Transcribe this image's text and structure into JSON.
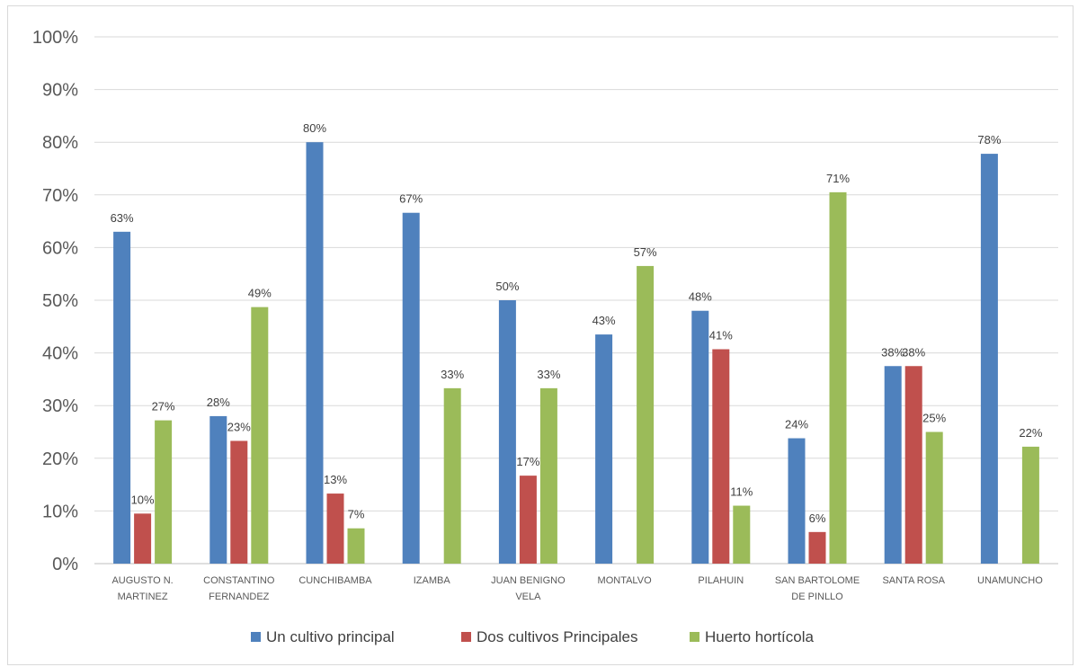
{
  "chart_data": {
    "type": "bar",
    "categories": [
      [
        "AUGUSTO N.",
        "MARTINEZ"
      ],
      [
        "CONSTANTINO",
        "FERNANDEZ"
      ],
      [
        "CUNCHIBAMBA"
      ],
      [
        "IZAMBA"
      ],
      [
        "JUAN BENIGNO",
        "VELA"
      ],
      [
        "MONTALVO"
      ],
      [
        "PILAHUIN"
      ],
      [
        "SAN BARTOLOME",
        "DE PINLLO"
      ],
      [
        "SANTA ROSA"
      ],
      [
        "UNAMUNCHO"
      ]
    ],
    "series": [
      {
        "name": "Un cultivo principal",
        "color": "#4f81bd",
        "values": [
          0.63,
          0.28,
          0.8,
          0.666,
          0.5,
          0.435,
          0.48,
          0.238,
          0.375,
          0.778
        ],
        "labels": [
          "63%",
          "28%",
          "80%",
          "67%",
          "50%",
          "43%",
          "48%",
          "24%",
          "38%",
          "78%"
        ]
      },
      {
        "name": "Dos cultivos Principales",
        "color": "#c0504d",
        "values": [
          0.095,
          0.233,
          0.133,
          0,
          0.167,
          0,
          0.407,
          0.06,
          0.375,
          0
        ],
        "labels": [
          "10%",
          "23%",
          "13%",
          "",
          "17%",
          "",
          "41%",
          "6%",
          "38%",
          ""
        ]
      },
      {
        "name": "Huerto hortícola",
        "color": "#9bbb59",
        "values": [
          0.272,
          0.487,
          0.067,
          0.333,
          0.333,
          0.565,
          0.11,
          0.705,
          0.25,
          0.222
        ],
        "labels": [
          "27%",
          "49%",
          "7%",
          "33%",
          "33%",
          "57%",
          "11%",
          "71%",
          "25%",
          "22%"
        ]
      }
    ],
    "ylim": [
      0,
      1
    ],
    "yticks": [
      "0%",
      "10%",
      "20%",
      "30%",
      "40%",
      "50%",
      "60%",
      "70%",
      "80%",
      "90%",
      "100%"
    ],
    "grid": true,
    "legend": "bottom",
    "title": "",
    "xlabel": "",
    "ylabel": ""
  }
}
